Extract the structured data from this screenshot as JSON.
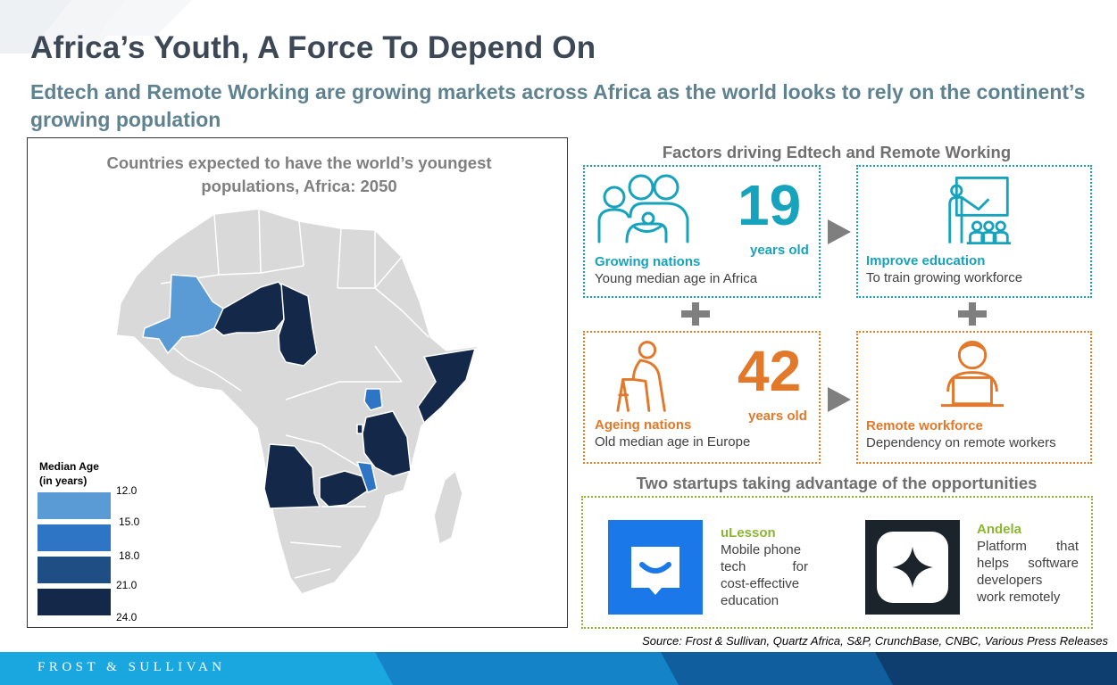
{
  "title": "Africa’s Youth, A Force To Depend On",
  "subtitle": "Edtech and Remote Working are growing markets across Africa as the world looks to rely on the continent’s growing population",
  "map": {
    "title_line1": "Countries  expected to have the world’s youngest",
    "title_line2": "populations,  Africa: 2050",
    "legend": {
      "title_line1": "Median Age",
      "title_line2": "(in years)",
      "ticks": [
        "12.0",
        "15.0",
        "18.0",
        "21.0",
        "24.0"
      ],
      "colors": [
        "#5b9bd5",
        "#2e75c6",
        "#1f4e84",
        "#14284a"
      ]
    },
    "highlighted_countries": [
      {
        "name": "Niger",
        "color": "#5b9bd5"
      },
      {
        "name": "Mali",
        "color": "#14284a"
      },
      {
        "name": "Chad",
        "color": "#14284a"
      },
      {
        "name": "Somalia",
        "color": "#14284a"
      },
      {
        "name": "Uganda",
        "color": "#2e75c6"
      },
      {
        "name": "Tanzania",
        "color": "#14284a"
      },
      {
        "name": "Angola",
        "color": "#14284a"
      },
      {
        "name": "Zambia",
        "color": "#14284a"
      },
      {
        "name": "Malawi",
        "color": "#14284a"
      },
      {
        "name": "Burundi",
        "color": "#2e75c6"
      }
    ]
  },
  "factors": {
    "heading": "Factors driving Edtech and Remote Working",
    "growing": {
      "number": "19",
      "unit": "years old",
      "label": "Growing nations",
      "desc": "Young median age in Africa",
      "icon": "family-icon"
    },
    "education": {
      "label": "Improve education",
      "desc": "To train growing workforce",
      "icon": "teacher-icon"
    },
    "ageing": {
      "number": "42",
      "unit": "years old",
      "label": "Ageing nations",
      "desc": "Old median age in Europe",
      "icon": "elderly-walker-icon"
    },
    "remote": {
      "label": "Remote workforce",
      "desc": "Dependency on remote workers",
      "icon": "remote-worker-icon"
    }
  },
  "startups": {
    "heading": "Two startups taking advantage of the opportunities",
    "items": [
      {
        "name": "uLesson",
        "desc_lines": [
          "Mobile phone",
          "tech for",
          "cost-effective",
          "education"
        ],
        "logo": "ulesson-logo",
        "logo_color": "#1a78e8"
      },
      {
        "name": "Andela",
        "desc_lines": [
          "Platform that",
          "helps software",
          "developers",
          "work remotely"
        ],
        "logo": "andela-logo",
        "logo_color": "#1c242b"
      }
    ]
  },
  "source": "Source: Frost & Sullivan, Quartz Africa, S&P,  CrunchBase, CNBC, Various Press Releases",
  "footer": {
    "brand": "FROST & SULLIVAN"
  },
  "colors": {
    "title": "#3c4855",
    "subtitle": "#5f8290",
    "teal": "#17a3bc",
    "orange": "#e1782a",
    "green": "#8cb534",
    "footer": "#1aa7e0"
  }
}
